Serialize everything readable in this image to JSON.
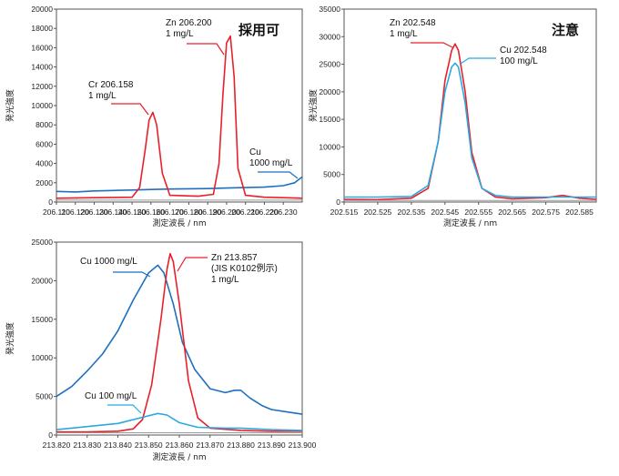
{
  "chart_data": [
    {
      "type": "line",
      "stamp": "採用可",
      "xlabel": "測定波長 / nm",
      "ylabel": "発光強度",
      "xlim": [
        206.11,
        206.24
      ],
      "ylim": [
        0,
        20000
      ],
      "xticks": [
        "206.110",
        "206.120",
        "206.130",
        "206.140",
        "206.150",
        "206.160",
        "206.170",
        "206.180",
        "206.190",
        "206.200",
        "206.210",
        "206.220",
        "206.230"
      ],
      "yticks": [
        "0",
        "2000",
        "4000",
        "6000",
        "8000",
        "10000",
        "12000",
        "14000",
        "16000",
        "18000",
        "20000"
      ],
      "series": [
        {
          "name": "Cu 1000 mg/L",
          "color": "#1f6fbf",
          "x": [
            206.11,
            206.12,
            206.13,
            206.14,
            206.15,
            206.16,
            206.17,
            206.18,
            206.19,
            206.2,
            206.21,
            206.22,
            206.23,
            206.236,
            206.24
          ],
          "y": [
            1100,
            1050,
            1150,
            1200,
            1250,
            1300,
            1350,
            1380,
            1400,
            1450,
            1500,
            1550,
            1700,
            2000,
            2600
          ]
        },
        {
          "name": "Cr 206.158 1 mg/L / Zn 206.200 1 mg/L",
          "color": "#e8202a",
          "x": [
            206.11,
            206.13,
            206.15,
            206.154,
            206.157,
            206.159,
            206.161,
            206.163,
            206.166,
            206.17,
            206.185,
            206.193,
            206.196,
            206.198,
            206.2,
            206.202,
            206.204,
            206.206,
            206.21,
            206.22,
            206.23,
            206.24
          ],
          "y": [
            400,
            450,
            500,
            1500,
            5500,
            8500,
            9300,
            8000,
            3000,
            700,
            600,
            800,
            4000,
            11000,
            16500,
            17200,
            13000,
            3500,
            700,
            500,
            450,
            400
          ]
        },
        {
          "name": "baseline",
          "color": "#999999",
          "x": [
            206.11,
            206.24
          ],
          "y": [
            200,
            200
          ]
        }
      ],
      "annotations": [
        {
          "lines": [
            "Zn  206.200",
            "1 mg/L"
          ]
        },
        {
          "lines": [
            "Cr  206.158",
            "1 mg/L"
          ]
        },
        {
          "lines": [
            "Cu",
            "1000 mg/L"
          ]
        }
      ]
    },
    {
      "type": "line",
      "stamp": "注意",
      "xlabel": "測定波長 / nm",
      "ylabel": "発光強度",
      "xlim": [
        202.515,
        202.59
      ],
      "ylim": [
        0,
        35000
      ],
      "xticks": [
        "202.515",
        "202.525",
        "202.535",
        "202.545",
        "202.555",
        "202.565",
        "202.575",
        "202.585"
      ],
      "yticks": [
        "0",
        "5000",
        "10000",
        "15000",
        "20000",
        "25000",
        "30000",
        "35000"
      ],
      "series": [
        {
          "name": "Zn 202.548 1 mg/L",
          "color": "#e8202a",
          "x": [
            202.515,
            202.525,
            202.535,
            202.54,
            202.543,
            202.545,
            202.547,
            202.548,
            202.549,
            202.551,
            202.553,
            202.556,
            202.56,
            202.565,
            202.575,
            202.58,
            202.585,
            202.59
          ],
          "y": [
            500,
            450,
            700,
            2500,
            11000,
            22000,
            27500,
            28700,
            27500,
            20000,
            9000,
            2500,
            900,
            600,
            800,
            1200,
            700,
            500
          ]
        },
        {
          "name": "Cu 202.548 100 mg/L",
          "color": "#29a9e0",
          "x": [
            202.515,
            202.525,
            202.535,
            202.54,
            202.543,
            202.545,
            202.547,
            202.548,
            202.549,
            202.551,
            202.553,
            202.556,
            202.56,
            202.565,
            202.575,
            202.585,
            202.59
          ],
          "y": [
            900,
            900,
            1000,
            3000,
            11000,
            20000,
            24500,
            25200,
            24500,
            18000,
            8000,
            2500,
            1200,
            900,
            900,
            900,
            900
          ]
        },
        {
          "name": "baseline",
          "color": "#999999",
          "x": [
            202.515,
            202.59
          ],
          "y": [
            300,
            300
          ]
        }
      ],
      "annotations": [
        {
          "lines": [
            "Zn  202.548",
            "1 mg/L"
          ]
        },
        {
          "lines": [
            "Cu 202.548",
            "100 mg/L"
          ]
        }
      ]
    },
    {
      "type": "line",
      "xlabel": "測定波長 / nm",
      "ylabel": "発光強度",
      "xlim": [
        213.82,
        213.9
      ],
      "ylim": [
        0,
        25000
      ],
      "xticks": [
        "213.820",
        "213.830",
        "213.840",
        "213.850",
        "213.860",
        "213.870",
        "213.880",
        "213.890",
        "213.900"
      ],
      "yticks": [
        "0",
        "5000",
        "10000",
        "15000",
        "20000",
        "25000"
      ],
      "series": [
        {
          "name": "Cu 1000 mg/L",
          "color": "#1f6fbf",
          "x": [
            213.82,
            213.825,
            213.83,
            213.835,
            213.84,
            213.845,
            213.85,
            213.853,
            213.855,
            213.858,
            213.861,
            213.865,
            213.87,
            213.875,
            213.878,
            213.88,
            213.883,
            213.887,
            213.89,
            213.895,
            213.9
          ],
          "y": [
            5000,
            6300,
            8300,
            10500,
            13500,
            17500,
            21000,
            22000,
            21000,
            17000,
            12000,
            8500,
            6000,
            5500,
            5800,
            5800,
            4800,
            3800,
            3300,
            3000,
            2700
          ]
        },
        {
          "name": "Zn 213.857 (JIS K0102例示) 1 mg/L",
          "color": "#e8202a",
          "x": [
            213.82,
            213.83,
            213.84,
            213.845,
            213.848,
            213.851,
            213.854,
            213.856,
            213.857,
            213.858,
            213.86,
            213.863,
            213.866,
            213.87,
            213.88,
            213.89,
            213.9
          ],
          "y": [
            400,
            400,
            500,
            800,
            2000,
            6500,
            15000,
            21500,
            23500,
            22500,
            17000,
            7000,
            2200,
            900,
            600,
            500,
            500
          ]
        },
        {
          "name": "Cu 100 mg/L",
          "color": "#29a9e0",
          "x": [
            213.82,
            213.83,
            213.84,
            213.848,
            213.853,
            213.856,
            213.86,
            213.866,
            213.875,
            213.88,
            213.89,
            213.9
          ],
          "y": [
            700,
            1100,
            1500,
            2300,
            2800,
            2600,
            1600,
            1000,
            900,
            900,
            700,
            600
          ]
        },
        {
          "name": "baseline",
          "color": "#999999",
          "x": [
            213.82,
            213.9
          ],
          "y": [
            300,
            300
          ]
        }
      ],
      "annotations": [
        {
          "lines": [
            "Cu 1000 mg/L"
          ]
        },
        {
          "lines": [
            "Zn  213.857",
            "(JIS K0102例示)",
            "1 mg/L"
          ]
        },
        {
          "lines": [
            "Cu 100 mg/L"
          ]
        }
      ]
    }
  ]
}
